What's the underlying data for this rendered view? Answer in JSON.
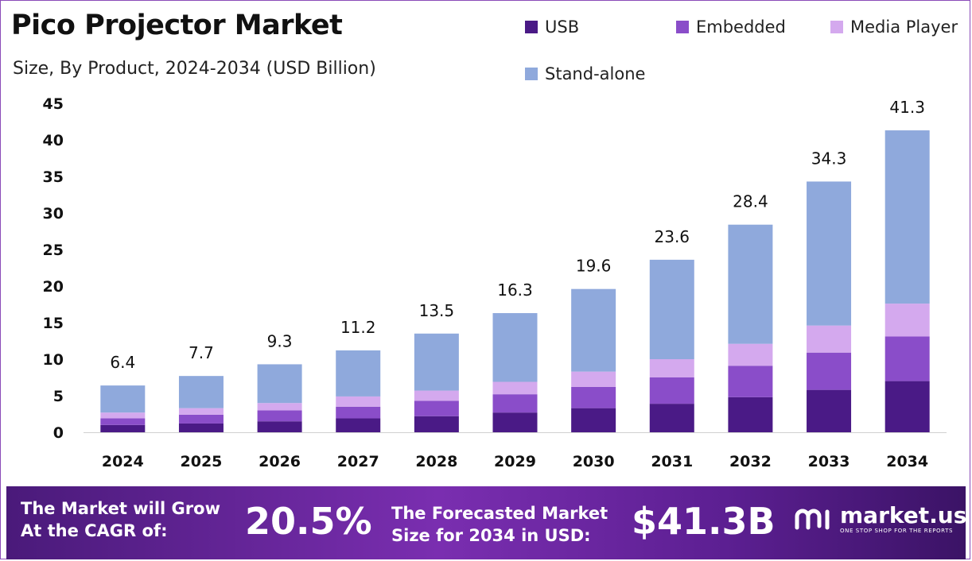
{
  "header": {
    "title": "Pico Projector Market",
    "subtitle": "Size, By Product, 2024-2034 (USD Billion)"
  },
  "legend": [
    {
      "label": "USB",
      "color": "#4a1a86"
    },
    {
      "label": "Embedded",
      "color": "#8a4dc9"
    },
    {
      "label": "Media Player",
      "color": "#d4a9ee"
    },
    {
      "label": "Stand-alone",
      "color": "#8fa9dc"
    }
  ],
  "chart_data": {
    "type": "bar",
    "stacked": true,
    "title": "Pico Projector Market",
    "subtitle": "Size, By Product, 2024-2034 (USD Billion)",
    "categories": [
      "2024",
      "2025",
      "2026",
      "2027",
      "2028",
      "2029",
      "2030",
      "2031",
      "2032",
      "2033",
      "2034"
    ],
    "series": [
      {
        "name": "USB",
        "color": "#4a1a86",
        "values": [
          1.0,
          1.2,
          1.5,
          1.9,
          2.2,
          2.7,
          3.3,
          3.9,
          4.8,
          5.8,
          7.0
        ]
      },
      {
        "name": "Embedded",
        "color": "#8a4dc9",
        "values": [
          0.9,
          1.2,
          1.5,
          1.6,
          2.1,
          2.5,
          2.9,
          3.6,
          4.3,
          5.1,
          6.1
        ]
      },
      {
        "name": "Media Player",
        "color": "#d4a9ee",
        "values": [
          0.8,
          0.9,
          1.0,
          1.4,
          1.4,
          1.7,
          2.1,
          2.5,
          3.0,
          3.7,
          4.5
        ]
      },
      {
        "name": "Stand-alone",
        "color": "#8fa9dc",
        "values": [
          3.7,
          4.4,
          5.3,
          6.3,
          7.8,
          9.4,
          11.3,
          13.6,
          16.3,
          19.7,
          23.7
        ]
      }
    ],
    "totals": [
      "6.4",
      "7.7",
      "9.3",
      "11.2",
      "13.5",
      "16.3",
      "19.6",
      "23.6",
      "28.4",
      "34.3",
      "41.3"
    ],
    "yticks": [
      "0",
      "5",
      "10",
      "15",
      "20",
      "25",
      "30",
      "35",
      "40",
      "45"
    ],
    "ylim": [
      0,
      45
    ],
    "xlabel": "",
    "ylabel": "",
    "grid": false,
    "legend_position": "top-right"
  },
  "banner": {
    "cagr_label_line1": "The Market will Grow",
    "cagr_label_line2": "At the CAGR of:",
    "cagr_value": "20.5%",
    "forecast_label_line1": "The Forecasted Market",
    "forecast_label_line2": "Size for 2034 in USD:",
    "forecast_value": "$41.3B",
    "brand_name": "market.us",
    "brand_tagline": "ONE STOP SHOP FOR THE REPORTS"
  }
}
